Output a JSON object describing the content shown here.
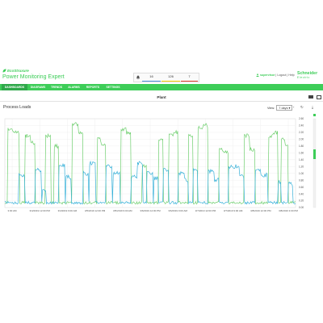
{
  "header": {
    "brand_top": "EcoStruxure",
    "brand_main": "Power Monitoring Expert",
    "alarms": [
      {
        "label": "16",
        "color": "#4a90d9"
      },
      {
        "label": "126",
        "color": "#f5d000"
      },
      {
        "label": "7",
        "color": "#e0402a"
      }
    ],
    "user_name": "supervisor",
    "logout_label": "Logout",
    "help_label": "Help",
    "logo_line1": "Schneider",
    "logo_line2": "Electric"
  },
  "nav": {
    "tabs": [
      {
        "label": "DASHBOARDS",
        "active": true
      },
      {
        "label": "DIAGRAMS",
        "active": false
      },
      {
        "label": "TRENDS",
        "active": false
      },
      {
        "label": "ALARMS",
        "active": false
      },
      {
        "label": "REPORTS",
        "active": false
      },
      {
        "label": "SETTINGS",
        "active": false
      }
    ]
  },
  "page": {
    "title": "Plant"
  },
  "widget": {
    "title": "Process Loads",
    "view_label": "View:",
    "view_value": "7 days"
  },
  "colors": {
    "accent": "#3dcd58",
    "series_green": "#6fcf6f",
    "series_blue": "#38b1d9"
  },
  "chart_data": {
    "type": "line",
    "x_ticks": [
      "3:00 AM",
      "3/4/2019 12:00 PM",
      "3/4/2019 9:00 AM",
      "3/5/2019 12:00 PM",
      "3/5/2019 9:00 AM",
      "3/6/2019 12:00 PM",
      "3/6/2019 9:00 AM",
      "3/7/2019 12:00 PM",
      "3/7/2019 9:00 AM",
      "3/8/2019 12:00 PM",
      "3/8/2019 3:00 PM"
    ],
    "y_ticks": [
      "2.60",
      "2.40",
      "2.20",
      "2.00",
      "1.80",
      "1.60",
      "1.40",
      "1.20",
      "1.00",
      "0.80",
      "0.60",
      "0.40",
      "0.20",
      "0.00"
    ],
    "ylim": [
      0,
      2.6
    ],
    "grid": true,
    "series": [
      {
        "color": "#6fcf6f",
        "pulses": [
          {
            "start": 4,
            "end": 10,
            "value": 2.3
          },
          {
            "start": 11,
            "end": 18,
            "value": 2.2
          },
          {
            "start": 26,
            "end": 32,
            "value": 2.1
          },
          {
            "start": 33,
            "end": 38,
            "value": 1.9
          },
          {
            "start": 52,
            "end": 58,
            "value": 2.1
          },
          {
            "start": 63,
            "end": 68,
            "value": 1.8
          },
          {
            "start": 86,
            "end": 93,
            "value": 2.45
          },
          {
            "start": 94,
            "end": 99,
            "value": 2.2
          },
          {
            "start": 118,
            "end": 122,
            "value": 2.0
          },
          {
            "start": 123,
            "end": 128,
            "value": 1.85
          },
          {
            "start": 148,
            "end": 154,
            "value": 2.3
          },
          {
            "start": 155,
            "end": 160,
            "value": 2.2
          },
          {
            "start": 175,
            "end": 180,
            "value": 1.2
          },
          {
            "start": 196,
            "end": 201,
            "value": 2.0
          },
          {
            "start": 209,
            "end": 214,
            "value": 2.1
          },
          {
            "start": 215,
            "end": 220,
            "value": 2.2
          },
          {
            "start": 234,
            "end": 239,
            "value": 2.1
          },
          {
            "start": 246,
            "end": 252,
            "value": 2.35
          },
          {
            "start": 253,
            "end": 258,
            "value": 2.4
          },
          {
            "start": 273,
            "end": 278,
            "value": 1.7
          },
          {
            "start": 279,
            "end": 284,
            "value": 1.6
          },
          {
            "start": 305,
            "end": 311,
            "value": 2.1
          },
          {
            "start": 312,
            "end": 318,
            "value": 1.7
          },
          {
            "start": 336,
            "end": 341,
            "value": 2.1
          },
          {
            "start": 342,
            "end": 347,
            "value": 2.2
          },
          {
            "start": 352,
            "end": 356,
            "value": 2.0
          },
          {
            "start": 357,
            "end": 360,
            "value": 1.8
          }
        ],
        "base": 0.1
      },
      {
        "color": "#38b1d9",
        "pulses": [
          {
            "start": 18,
            "end": 25,
            "value": 0.95
          },
          {
            "start": 39,
            "end": 46,
            "value": 1.1
          },
          {
            "start": 48,
            "end": 52,
            "value": 0.5
          },
          {
            "start": 69,
            "end": 76,
            "value": 1.25
          },
          {
            "start": 78,
            "end": 84,
            "value": 0.9
          },
          {
            "start": 100,
            "end": 106,
            "value": 1.0
          },
          {
            "start": 108,
            "end": 115,
            "value": 1.3
          },
          {
            "start": 129,
            "end": 136,
            "value": 1.2
          },
          {
            "start": 138,
            "end": 146,
            "value": 1.0
          },
          {
            "start": 161,
            "end": 168,
            "value": 0.9
          },
          {
            "start": 169,
            "end": 175,
            "value": 1.3
          },
          {
            "start": 181,
            "end": 188,
            "value": 1.0
          },
          {
            "start": 190,
            "end": 195,
            "value": 0.85
          },
          {
            "start": 202,
            "end": 208,
            "value": 1.1
          },
          {
            "start": 221,
            "end": 228,
            "value": 1.0
          },
          {
            "start": 229,
            "end": 233,
            "value": 0.8
          },
          {
            "start": 240,
            "end": 245,
            "value": 1.1
          },
          {
            "start": 259,
            "end": 266,
            "value": 1.05
          },
          {
            "start": 267,
            "end": 272,
            "value": 0.8
          },
          {
            "start": 285,
            "end": 291,
            "value": 1.2
          },
          {
            "start": 292,
            "end": 298,
            "value": 1.2
          },
          {
            "start": 299,
            "end": 304,
            "value": 0.9
          },
          {
            "start": 319,
            "end": 325,
            "value": 1.1
          },
          {
            "start": 326,
            "end": 334,
            "value": 0.95
          },
          {
            "start": 348,
            "end": 351,
            "value": 0.75
          },
          {
            "start": 361,
            "end": 366,
            "value": 0.7
          }
        ],
        "base": 0.1
      }
    ]
  }
}
